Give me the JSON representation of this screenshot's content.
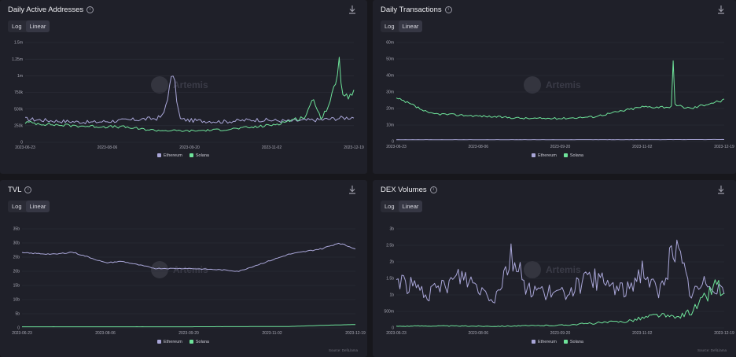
{
  "colors": {
    "ethereum": "#a9a6d8",
    "solana": "#6ee39a"
  },
  "watermark": "Artemis",
  "scale_options": [
    "Log",
    "Linear"
  ],
  "selected_scale": "Linear",
  "panels": [
    {
      "title": "Daily Active Addresses",
      "legend": [
        "Ethereum",
        "Solana"
      ],
      "source": "",
      "chart_data": {
        "type": "line",
        "title": "Daily Active Addresses",
        "x_labels": [
          "2023-06-23",
          "2023-08-06",
          "2023-09-20",
          "2023-11-02",
          "2023-12-19"
        ],
        "y_ticks": [
          "0",
          "250k",
          "500k",
          "750k",
          "1m",
          "1.25m",
          "1.5m"
        ],
        "ylim": [
          0,
          1500000
        ],
        "series": [
          {
            "name": "Ethereum",
            "anchors": [
              [
                0,
                350000
              ],
              [
                0.1,
                320000
              ],
              [
                0.2,
                300000
              ],
              [
                0.3,
                330000
              ],
              [
                0.4,
                360000
              ],
              [
                0.42,
                400000
              ],
              [
                0.45,
                1050000
              ],
              [
                0.47,
                350000
              ],
              [
                0.5,
                330000
              ],
              [
                0.6,
                310000
              ],
              [
                0.7,
                340000
              ],
              [
                0.8,
                320000
              ],
              [
                0.9,
                340000
              ],
              [
                1,
                380000
              ]
            ]
          },
          {
            "name": "Solana",
            "anchors": [
              [
                0,
                300000
              ],
              [
                0.1,
                260000
              ],
              [
                0.2,
                240000
              ],
              [
                0.3,
                230000
              ],
              [
                0.35,
                200000
              ],
              [
                0.4,
                180000
              ],
              [
                0.5,
                170000
              ],
              [
                0.6,
                190000
              ],
              [
                0.7,
                230000
              ],
              [
                0.75,
                260000
              ],
              [
                0.8,
                320000
              ],
              [
                0.85,
                380000
              ],
              [
                0.88,
                650000
              ],
              [
                0.9,
                360000
              ],
              [
                0.93,
                600000
              ],
              [
                0.955,
                1200000
              ],
              [
                0.97,
                650000
              ],
              [
                1,
                730000
              ]
            ]
          }
        ]
      }
    },
    {
      "title": "Daily Transactions",
      "legend": [
        "Ethereum",
        "Solana"
      ],
      "source": "",
      "chart_data": {
        "type": "line",
        "title": "Daily Transactions",
        "x_labels": [
          "2023-06-23",
          "2023-08-06",
          "2023-09-20",
          "2023-11-02",
          "2023-12-19"
        ],
        "y_ticks": [
          "0",
          "10m",
          "20m",
          "30m",
          "40m",
          "50m",
          "60m"
        ],
        "ylim": [
          0,
          60000000
        ],
        "series": [
          {
            "name": "Ethereum",
            "anchors": [
              [
                0,
                1100000
              ],
              [
                0.5,
                1100000
              ],
              [
                1,
                1200000
              ]
            ]
          },
          {
            "name": "Solana",
            "anchors": [
              [
                0,
                26000000
              ],
              [
                0.05,
                22000000
              ],
              [
                0.1,
                17000000
              ],
              [
                0.2,
                16000000
              ],
              [
                0.3,
                15000000
              ],
              [
                0.4,
                14000000
              ],
              [
                0.5,
                14000000
              ],
              [
                0.6,
                15000000
              ],
              [
                0.65,
                17000000
              ],
              [
                0.7,
                19000000
              ],
              [
                0.75,
                21000000
              ],
              [
                0.8,
                21000000
              ],
              [
                0.84,
                21000000
              ],
              [
                0.845,
                51000000
              ],
              [
                0.85,
                22000000
              ],
              [
                0.9,
                20000000
              ],
              [
                0.95,
                23000000
              ],
              [
                1,
                25000000
              ]
            ]
          }
        ]
      }
    },
    {
      "title": "TVL",
      "legend": [
        "Ethereum",
        "Solana"
      ],
      "source": "Source: DefiLlama",
      "chart_data": {
        "type": "line",
        "title": "TVL",
        "x_labels": [
          "2023-06-23",
          "2023-08-06",
          "2023-09-20",
          "2023-11-02",
          "2023-12-19"
        ],
        "y_ticks": [
          "0",
          "5b",
          "10b",
          "15b",
          "20b",
          "25b",
          "30b",
          "35b"
        ],
        "ylim": [
          0,
          35000000000
        ],
        "series": [
          {
            "name": "Ethereum",
            "anchors": [
              [
                0,
                26500000000
              ],
              [
                0.1,
                26000000000
              ],
              [
                0.15,
                26800000000
              ],
              [
                0.2,
                25000000000
              ],
              [
                0.25,
                23000000000
              ],
              [
                0.3,
                23500000000
              ],
              [
                0.4,
                21000000000
              ],
              [
                0.5,
                21000000000
              ],
              [
                0.6,
                20500000000
              ],
              [
                0.65,
                20000000000
              ],
              [
                0.7,
                22000000000
              ],
              [
                0.75,
                24000000000
              ],
              [
                0.8,
                26000000000
              ],
              [
                0.85,
                27000000000
              ],
              [
                0.9,
                28000000000
              ],
              [
                0.95,
                30000000000
              ],
              [
                1,
                28000000000
              ]
            ]
          },
          {
            "name": "Solana",
            "anchors": [
              [
                0,
                400000000
              ],
              [
                0.5,
                400000000
              ],
              [
                0.8,
                500000000
              ],
              [
                0.9,
                900000000
              ],
              [
                1,
                1200000000
              ]
            ]
          }
        ]
      }
    },
    {
      "title": "DEX Volumes",
      "legend": [
        "Ethereum",
        "Solana"
      ],
      "source": "Source: DefiLlama",
      "chart_data": {
        "type": "line",
        "title": "DEX Volumes",
        "x_labels": [
          "2023-06-23",
          "2023-08-06",
          "2023-09-20",
          "2023-11-02",
          "2023-12-19"
        ],
        "y_ticks": [
          "0",
          "500m",
          "1b",
          "1.5b",
          "2b",
          "2.5b",
          "3b"
        ],
        "ylim": [
          0,
          3000000000
        ],
        "series": [
          {
            "name": "Ethereum",
            "anchors": [
              [
                0,
                1500000000
              ],
              [
                0.1,
                1000000000
              ],
              [
                0.2,
                1600000000
              ],
              [
                0.3,
                900000000
              ],
              [
                0.35,
                2200000000
              ],
              [
                0.4,
                1200000000
              ],
              [
                0.5,
                1000000000
              ],
              [
                0.6,
                1500000000
              ],
              [
                0.7,
                1100000000
              ],
              [
                0.75,
                1800000000
              ],
              [
                0.8,
                1000000000
              ],
              [
                0.85,
                2500000000
              ],
              [
                0.9,
                1000000000
              ],
              [
                0.95,
                1400000000
              ],
              [
                1,
                1200000000
              ]
            ]
          },
          {
            "name": "Solana",
            "anchors": [
              [
                0,
                50000000
              ],
              [
                0.1,
                60000000
              ],
              [
                0.3,
                50000000
              ],
              [
                0.5,
                80000000
              ],
              [
                0.7,
                200000000
              ],
              [
                0.8,
                400000000
              ],
              [
                0.85,
                300000000
              ],
              [
                0.9,
                500000000
              ],
              [
                0.95,
                1000000000
              ],
              [
                0.98,
                1400000000
              ],
              [
                1,
                900000000
              ]
            ]
          }
        ]
      }
    }
  ]
}
